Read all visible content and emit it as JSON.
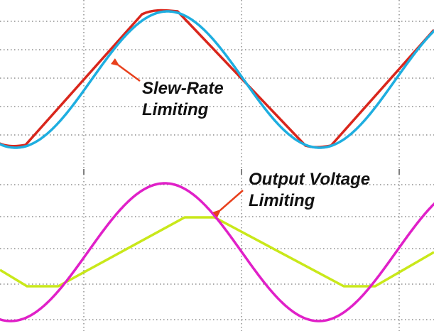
{
  "annotations": {
    "slew_rate": {
      "line1": "Slew-Rate",
      "line2": "Limiting"
    },
    "output_voltage": {
      "line1": "Output Voltage",
      "line2": "Limiting"
    }
  },
  "colors": {
    "sine_input_top": "#1eaee0",
    "slew_limited_output": "#d9261c",
    "sine_input_bottom": "#e020c8",
    "clipped_output": "#c9e81a",
    "arrow": "#e8401c",
    "grid": "#555555"
  },
  "icons": {
    "slew_arrow": "arrow-pointing-left-up",
    "voltage_arrow": "arrow-pointing-left-down"
  }
}
